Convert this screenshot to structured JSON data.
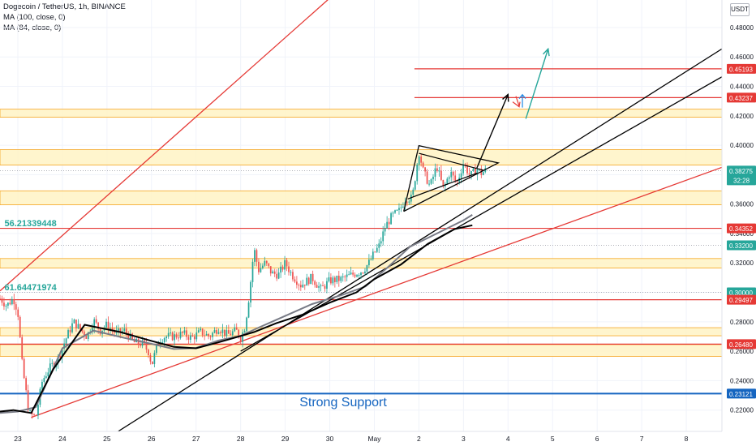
{
  "header": {
    "symbol_line": "Dogecoin / TetherUS, 1h, BINANCE",
    "ma1_line": "MA (100, close, 0)",
    "ma2_line": "MA (84, close, 0)",
    "currency_badge": "USDT"
  },
  "chart_data": {
    "type": "candlestick",
    "y_axis_ticks": [
      "0.48000",
      "0.46000",
      "0.44000",
      "0.42000",
      "0.40000",
      "0.38000",
      "0.36000",
      "0.34000",
      "0.32000",
      "0.30000",
      "0.28000",
      "0.26000",
      "0.24000",
      "0.22000"
    ],
    "y_axis_values": [
      0.48,
      0.46,
      0.44,
      0.42,
      0.4,
      0.38,
      0.36,
      0.34,
      0.32,
      0.3,
      0.28,
      0.26,
      0.24,
      0.22
    ],
    "ylim": [
      0.2055,
      0.4987
    ],
    "x_axis_ticks": [
      "23",
      "24",
      "25",
      "26",
      "27",
      "28",
      "29",
      "30",
      "May",
      "2",
      "3",
      "4",
      "5",
      "6",
      "7",
      "8"
    ],
    "x_axis_values": [
      0,
      1,
      2,
      3,
      4,
      5,
      6,
      7,
      8,
      9,
      10,
      11,
      12,
      13,
      14,
      15
    ],
    "xlim": [
      -0.4,
      15.8
    ],
    "price_tags": [
      {
        "label": "0.45193",
        "value": 0.45193,
        "color": "#e53935"
      },
      {
        "label": "0.43237",
        "value": 0.43237,
        "color": "#e53935"
      },
      {
        "label": "0.38275",
        "value": 0.38275,
        "color": "#26a69a",
        "sub": "32:28"
      },
      {
        "label": "0.34352",
        "value": 0.34352,
        "color": "#e53935"
      },
      {
        "label": "0.33200",
        "value": 0.332,
        "color": "#26a69a"
      },
      {
        "label": "0.30000",
        "value": 0.3,
        "color": "#26a69a"
      },
      {
        "label": "0.29497",
        "value": 0.29497,
        "color": "#e53935"
      },
      {
        "label": "0.26480",
        "value": 0.2648,
        "color": "#e53935"
      },
      {
        "label": "0.23121",
        "value": 0.23121,
        "color": "#1565c0"
      }
    ],
    "zones": [
      [
        0.419,
        0.4245
      ],
      [
        0.3865,
        0.397
      ],
      [
        0.3595,
        0.369
      ],
      [
        0.3165,
        0.323
      ],
      [
        0.2705,
        0.276
      ],
      [
        0.2565,
        0.2645
      ]
    ],
    "hlines": [
      {
        "value": 0.45193,
        "color": "#e53935",
        "from": 8.9
      },
      {
        "value": 0.43237,
        "color": "#e53935",
        "from": 8.9
      },
      {
        "value": 0.34352,
        "color": "#e53935",
        "from": -0.4
      },
      {
        "value": 0.29497,
        "color": "#e53935",
        "from": -0.4
      },
      {
        "value": 0.2648,
        "color": "#e53935",
        "from": -0.4
      },
      {
        "value": 0.23121,
        "color": "#1565c0",
        "from": -0.4
      }
    ],
    "dotted_lines": [
      0.38275,
      0.332,
      0.3
    ],
    "trendlines": [
      {
        "points": [
          [
            -0.4,
            0.301
          ],
          [
            7.0,
            0.5
          ]
        ],
        "color": "#e53935"
      },
      {
        "points": [
          [
            0.3,
            0.215
          ],
          [
            15.8,
            0.385
          ]
        ],
        "color": "#e53935"
      },
      {
        "points": [
          [
            2.25,
            0.2055
          ],
          [
            15.8,
            0.4655
          ]
        ],
        "color": "#000000"
      },
      {
        "points": [
          [
            5.0,
            0.26
          ],
          [
            15.8,
            0.4465
          ]
        ],
        "color": "#000000"
      }
    ],
    "triangle": {
      "outer": [
        [
          8.66,
          0.355
        ],
        [
          9.0,
          0.3997
        ],
        [
          10.78,
          0.388
        ],
        [
          8.66,
          0.355
        ]
      ],
      "inner_top": [
        [
          9.0,
          0.3945
        ],
        [
          10.45,
          0.383
        ]
      ],
      "inner_bottom": [
        [
          8.75,
          0.3635
        ],
        [
          10.3,
          0.381
        ]
      ]
    },
    "projection_arrows": [
      {
        "points": [
          [
            10.3,
            0.3845
          ],
          [
            11.0,
            0.4345
          ]
        ],
        "color": "#000000"
      },
      {
        "points": [
          [
            11.4,
            0.418
          ],
          [
            11.9,
            0.4655
          ]
        ],
        "color": "#26a69a"
      }
    ],
    "ma_black": [
      [
        -0.4,
        0.219
      ],
      [
        -0.1,
        0.22
      ],
      [
        0.3,
        0.218
      ],
      [
        0.8,
        0.248
      ],
      [
        1.5,
        0.278
      ],
      [
        2.3,
        0.273
      ],
      [
        3.0,
        0.267
      ],
      [
        3.5,
        0.263
      ],
      [
        4.0,
        0.262
      ],
      [
        4.5,
        0.266
      ],
      [
        4.9,
        0.2695
      ],
      [
        5.3,
        0.273
      ],
      [
        5.8,
        0.279
      ],
      [
        6.4,
        0.285
      ],
      [
        7.0,
        0.293
      ],
      [
        7.6,
        0.3
      ],
      [
        8.0,
        0.309
      ],
      [
        8.6,
        0.319
      ],
      [
        9.2,
        0.333
      ],
      [
        9.8,
        0.343
      ],
      [
        10.2,
        0.3456
      ]
    ],
    "ma_gray": [
      [
        -0.4,
        0.218
      ],
      [
        0.0,
        0.219
      ],
      [
        0.4,
        0.222
      ],
      [
        1.0,
        0.262
      ],
      [
        1.7,
        0.274
      ],
      [
        2.4,
        0.269
      ],
      [
        3.0,
        0.265
      ],
      [
        3.5,
        0.2615
      ],
      [
        4.0,
        0.2622
      ],
      [
        4.5,
        0.2672
      ],
      [
        5.0,
        0.2705
      ],
      [
        5.4,
        0.276
      ],
      [
        6.0,
        0.284
      ],
      [
        6.6,
        0.292
      ],
      [
        7.3,
        0.2985
      ],
      [
        7.8,
        0.304
      ],
      [
        8.3,
        0.317
      ],
      [
        8.8,
        0.331
      ],
      [
        9.4,
        0.34
      ],
      [
        10.0,
        0.349
      ],
      [
        10.2,
        0.3527
      ]
    ],
    "close_path": [
      [
        -0.4,
        0.296
      ],
      [
        -0.25,
        0.291
      ],
      [
        -0.1,
        0.296
      ],
      [
        0.0,
        0.287
      ],
      [
        0.1,
        0.25
      ],
      [
        0.25,
        0.218
      ],
      [
        0.4,
        0.215
      ],
      [
        0.55,
        0.24
      ],
      [
        0.7,
        0.248
      ],
      [
        0.9,
        0.255
      ],
      [
        1.1,
        0.27
      ],
      [
        1.25,
        0.28
      ],
      [
        1.4,
        0.275
      ],
      [
        1.55,
        0.27
      ],
      [
        1.7,
        0.281
      ],
      [
        1.85,
        0.274
      ],
      [
        2.0,
        0.278
      ],
      [
        2.2,
        0.272
      ],
      [
        2.4,
        0.274
      ],
      [
        2.6,
        0.266
      ],
      [
        2.8,
        0.265
      ],
      [
        2.95,
        0.259
      ],
      [
        3.0,
        0.25
      ],
      [
        3.15,
        0.267
      ],
      [
        3.3,
        0.27
      ],
      [
        3.5,
        0.27
      ],
      [
        3.7,
        0.272
      ],
      [
        3.9,
        0.269
      ],
      [
        4.1,
        0.273
      ],
      [
        4.3,
        0.27
      ],
      [
        4.5,
        0.276
      ],
      [
        4.7,
        0.271
      ],
      [
        4.9,
        0.274
      ],
      [
        5.0,
        0.269
      ],
      [
        5.1,
        0.277
      ],
      [
        5.2,
        0.3
      ],
      [
        5.3,
        0.33
      ],
      [
        5.4,
        0.315
      ],
      [
        5.55,
        0.32
      ],
      [
        5.7,
        0.313
      ],
      [
        5.85,
        0.312
      ],
      [
        6.0,
        0.32
      ],
      [
        6.15,
        0.312
      ],
      [
        6.35,
        0.305
      ],
      [
        6.6,
        0.31
      ],
      [
        6.8,
        0.302
      ],
      [
        7.0,
        0.308
      ],
      [
        7.25,
        0.309
      ],
      [
        7.5,
        0.312
      ],
      [
        7.75,
        0.315
      ],
      [
        7.9,
        0.321
      ],
      [
        8.0,
        0.327
      ],
      [
        8.1,
        0.331
      ],
      [
        8.25,
        0.345
      ],
      [
        8.4,
        0.352
      ],
      [
        8.55,
        0.355
      ],
      [
        8.7,
        0.364
      ],
      [
        8.85,
        0.364
      ],
      [
        9.0,
        0.396
      ],
      [
        9.1,
        0.382
      ],
      [
        9.25,
        0.372
      ],
      [
        9.4,
        0.386
      ],
      [
        9.55,
        0.37
      ],
      [
        9.7,
        0.382
      ],
      [
        9.85,
        0.374
      ],
      [
        10.0,
        0.388
      ],
      [
        10.15,
        0.379
      ],
      [
        10.3,
        0.384
      ],
      [
        10.4,
        0.381
      ],
      [
        10.5,
        0.383
      ]
    ],
    "annotations": [
      {
        "text": "Strong Support",
        "x": 7.3,
        "y": 0.2225,
        "color": "#1565c0"
      },
      {
        "text": "56.21339448",
        "x": -0.3,
        "y": 0.345,
        "color": "#26a69a"
      },
      {
        "text": "61.64471974",
        "x": -0.3,
        "y": 0.3015,
        "color": "#26a69a"
      }
    ]
  }
}
